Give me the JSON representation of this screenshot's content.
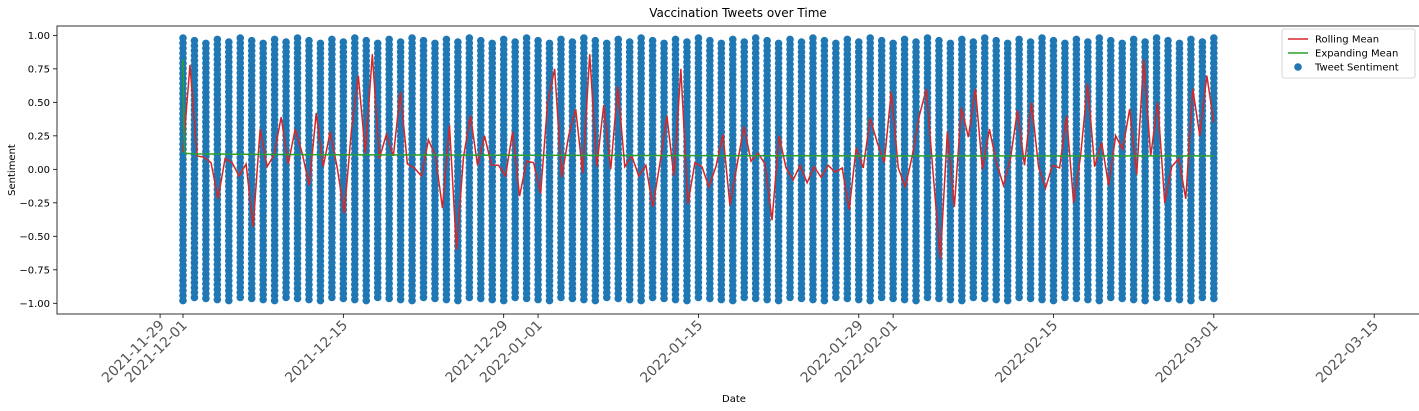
{
  "chart_data": {
    "type": "scatter",
    "title": "Vaccination Tweets over Time",
    "xlabel": "Date",
    "ylabel": "Sentiment",
    "xlim": [
      "2021-11-20",
      "2022-03-19"
    ],
    "ylim": [
      -1.08,
      1.07
    ],
    "x_ticks": [
      "2021-11-29",
      "2021-12-01",
      "2021-12-15",
      "2021-12-29",
      "2022-01-01",
      "2022-01-15",
      "2022-01-29",
      "2022-02-01",
      "2022-02-15",
      "2022-03-01",
      "2022-03-15"
    ],
    "y_ticks": [
      -1.0,
      -0.75,
      -0.5,
      -0.25,
      0.0,
      0.25,
      0.5,
      0.75,
      1.0
    ],
    "y_tick_labels": [
      "−1.00",
      "−0.75",
      "−0.50",
      "−0.25",
      "0.00",
      "0.25",
      "0.50",
      "0.75",
      "1.00"
    ],
    "date_range": [
      "2021-12-01",
      "2022-03-01"
    ],
    "grid": false,
    "legend_position": "top-right",
    "series": [
      {
        "name": "Rolling Mean",
        "kind": "line",
        "color": "#d62728",
        "values": [
          0.13,
          0.78,
          0.1,
          0.09,
          0.05,
          -0.22,
          0.08,
          0.05,
          -0.05,
          0.04,
          -0.43,
          0.3,
          0.02,
          0.11,
          0.39,
          0.04,
          0.3,
          0.12,
          -0.12,
          0.42,
          0.02,
          0.28,
          0.01,
          -0.33,
          0.28,
          0.7,
          0.12,
          0.86,
          0.08,
          0.26,
          0.1,
          0.58,
          0.04,
          0.01,
          -0.05,
          0.22,
          0.1,
          -0.29,
          0.33,
          -0.6,
          0.09,
          0.4,
          0.03,
          0.25,
          0.03,
          0.03,
          -0.05,
          0.28,
          -0.2,
          0.06,
          0.05,
          -0.18,
          0.5,
          0.75,
          -0.06,
          0.25,
          0.45,
          -0.03,
          0.86,
          0.02,
          0.48,
          0.0,
          0.62,
          0.02,
          0.1,
          -0.05,
          0.03,
          -0.28,
          0.04,
          0.4,
          -0.05,
          0.75,
          -0.26,
          0.05,
          0.02,
          -0.13,
          0.02,
          0.26,
          -0.27,
          0.03,
          0.32,
          0.06,
          0.12,
          0.04,
          -0.38,
          0.25,
          0.01,
          -0.08,
          0.03,
          -0.1,
          0.02,
          -0.06,
          0.03,
          -0.02,
          0.01,
          -0.3,
          0.16,
          0.01,
          0.38,
          0.2,
          0.05,
          0.58,
          0.01,
          -0.13,
          0.1,
          0.4,
          0.6,
          -0.05,
          -0.67,
          0.28,
          -0.28,
          0.46,
          0.24,
          0.6,
          0.0,
          0.3,
          0.05,
          -0.12,
          0.08,
          0.44,
          0.03,
          0.5,
          0.02,
          -0.14,
          0.03,
          0.01,
          0.4,
          -0.25,
          0.1,
          0.64,
          0.02,
          0.2,
          -0.12,
          0.25,
          0.15,
          0.45,
          -0.04,
          0.82,
          0.1,
          0.5,
          -0.25,
          0.02,
          0.08,
          -0.22,
          0.6,
          0.25,
          0.7,
          0.35
        ]
      },
      {
        "name": "Expanding Mean",
        "kind": "line",
        "color": "#2ca02c",
        "values": [
          0.82,
          0.12,
          0.115,
          0.11,
          0.105,
          0.1,
          0.1
        ]
      },
      {
        "name": "Tweet Sentiment",
        "kind": "scatter",
        "color": "#1f77b4",
        "y_range": [
          -0.98,
          0.98
        ]
      }
    ]
  }
}
